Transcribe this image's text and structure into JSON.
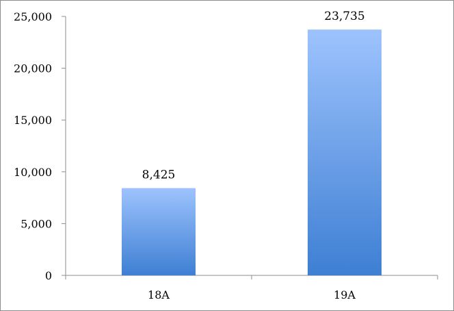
{
  "chart_data": {
    "type": "bar",
    "title": "",
    "xlabel": "",
    "ylabel": "",
    "categories": [
      "18A",
      "19A"
    ],
    "values": [
      8425,
      23735
    ],
    "data_labels": [
      "8,425",
      "23,735"
    ],
    "ylim": [
      0,
      25000
    ],
    "yticks": [
      0,
      5000,
      10000,
      15000,
      20000,
      25000
    ],
    "ytick_labels": [
      "0",
      "5,000",
      "10,000",
      "15,000",
      "20,000",
      "25,000"
    ],
    "grid": false,
    "legend": "none",
    "colors": {
      "bar_top": "#9dc3fd",
      "bar_bottom": "#3e7fd3",
      "axis": "#8c8c8c"
    }
  }
}
